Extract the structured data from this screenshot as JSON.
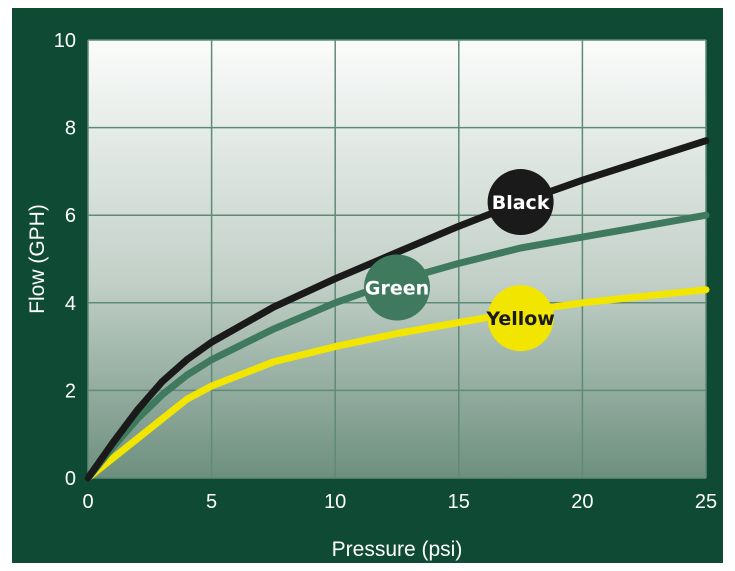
{
  "chart_data": {
    "type": "line",
    "xlabel": "Pressure (psi)",
    "ylabel": "Flow (GPH)",
    "xlim": [
      0,
      25
    ],
    "ylim": [
      0,
      10
    ],
    "xticks": [
      "0",
      "5",
      "10",
      "15",
      "20",
      "25"
    ],
    "yticks": [
      "0",
      "2",
      "4",
      "6",
      "8",
      "10"
    ],
    "grid": true,
    "background": "#0e4a34",
    "series": [
      {
        "name": "Black",
        "color": "#1a1a1a",
        "label_color": "#ffffff",
        "label_at": [
          17.5,
          6.3
        ],
        "x": [
          0,
          1,
          2,
          3,
          4,
          5,
          7.5,
          10,
          12.5,
          15,
          17.5,
          20,
          22.5,
          25
        ],
        "y": [
          0,
          0.8,
          1.55,
          2.2,
          2.7,
          3.1,
          3.9,
          4.55,
          5.15,
          5.75,
          6.3,
          6.8,
          7.25,
          7.7
        ]
      },
      {
        "name": "Green",
        "color": "#3f7a5f",
        "label_color": "#ffffff",
        "label_at": [
          12.5,
          4.35
        ],
        "x": [
          0,
          1,
          2,
          3,
          4,
          5,
          7.5,
          10,
          12.5,
          15,
          17.5,
          20,
          22.5,
          25
        ],
        "y": [
          0,
          0.7,
          1.35,
          1.9,
          2.35,
          2.7,
          3.4,
          4.0,
          4.5,
          4.9,
          5.25,
          5.5,
          5.75,
          6.0
        ]
      },
      {
        "name": "Yellow",
        "color": "#f2e600",
        "label_color": "#1a1a1a",
        "label_at": [
          17.5,
          3.65
        ],
        "x": [
          0,
          1,
          2,
          3,
          4,
          5,
          7.5,
          10,
          12.5,
          15,
          17.5,
          20,
          22.5,
          25
        ],
        "y": [
          0,
          0.45,
          0.9,
          1.35,
          1.8,
          2.1,
          2.65,
          3.0,
          3.3,
          3.55,
          3.8,
          4.0,
          4.15,
          4.3
        ]
      }
    ]
  }
}
